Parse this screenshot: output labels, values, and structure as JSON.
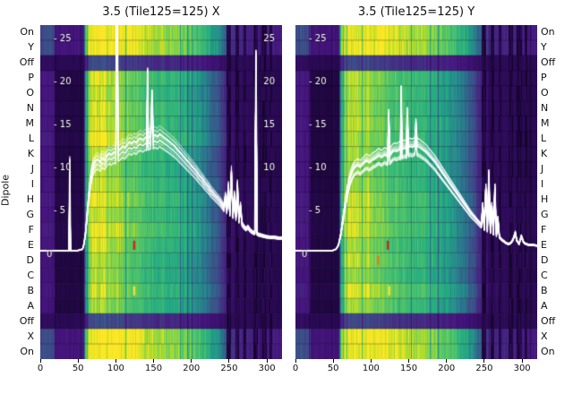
{
  "figure": {
    "background": "#ffffff",
    "ylabel": "Dipole"
  },
  "chart_data": [
    {
      "type": "heatmap",
      "title": "3.5 (Tile125=125) X",
      "x_ticks": [
        0,
        50,
        100,
        150,
        200,
        250,
        300
      ],
      "x_range": [
        0,
        320
      ],
      "rows": [
        "On",
        "Y",
        "Off",
        "P",
        "O",
        "N",
        "M",
        "L",
        "K",
        "J",
        "I",
        "H",
        "G",
        "F",
        "E",
        "D",
        "C",
        "B",
        "A",
        "Off",
        "X",
        "On"
      ],
      "amp_axis": {
        "min": 0,
        "max": 25,
        "ticks_left": [
          25,
          20,
          15,
          10,
          5
        ],
        "ticks_right": [
          25,
          20,
          15,
          10
        ],
        "zero_label": "0"
      },
      "colormap": [
        [
          0,
          "#05000d"
        ],
        [
          0.06,
          "#2a0a54"
        ],
        [
          0.13,
          "#46157e"
        ],
        [
          0.22,
          "#414487"
        ],
        [
          0.34,
          "#2a788e"
        ],
        [
          0.48,
          "#22a884"
        ],
        [
          0.62,
          "#44bf70"
        ],
        [
          0.76,
          "#7ad151"
        ],
        [
          0.88,
          "#bddf26"
        ],
        [
          1,
          "#fde725"
        ]
      ],
      "bandpass_profile": [
        [
          0,
          0.14
        ],
        [
          18,
          0.14
        ],
        [
          20,
          0.05
        ],
        [
          57,
          0.05
        ],
        [
          59,
          0.35
        ],
        [
          63,
          0.82
        ],
        [
          67,
          0.97
        ],
        [
          82,
          0.94
        ],
        [
          96,
          0.88
        ],
        [
          108,
          0.8
        ],
        [
          120,
          0.73
        ],
        [
          135,
          0.67
        ],
        [
          155,
          0.62
        ],
        [
          175,
          0.58
        ],
        [
          190,
          0.53
        ],
        [
          202,
          0.47
        ],
        [
          214,
          0.41
        ],
        [
          224,
          0.35
        ],
        [
          234,
          0.27
        ],
        [
          244,
          0.18
        ],
        [
          252,
          0.11
        ],
        [
          258,
          0.08
        ],
        [
          320,
          0.06
        ]
      ],
      "rfi_columns": [
        [
          246,
          252
        ],
        [
          258,
          263
        ],
        [
          268,
          272
        ],
        [
          281,
          287
        ],
        [
          292,
          299
        ],
        [
          303,
          306
        ]
      ],
      "marks": [
        {
          "x": 124,
          "row": 14,
          "color": "#cc2a12"
        },
        {
          "x": 124,
          "row": 17,
          "color": "#e8e337"
        }
      ],
      "seed": 101,
      "overlay": {
        "color": "#ffffff",
        "n_lines": 14,
        "series": [
          [
            0,
            0.3
          ],
          [
            34,
            0.3
          ],
          [
            38,
            0.3
          ],
          [
            39,
            10.5
          ],
          [
            40,
            0.3
          ],
          [
            50,
            0.35
          ],
          [
            56,
            0.5
          ],
          [
            58,
            1.2
          ],
          [
            60,
            2.5
          ],
          [
            62,
            4.5
          ],
          [
            64,
            6.5
          ],
          [
            66,
            8.2
          ],
          [
            68,
            9.4
          ],
          [
            70,
            10.2
          ],
          [
            73,
            10.7
          ],
          [
            76,
            10.9
          ],
          [
            79,
            10.6
          ],
          [
            82,
            11.1
          ],
          [
            85,
            10.8
          ],
          [
            88,
            11.3
          ],
          [
            91,
            11.6
          ],
          [
            94,
            11.4
          ],
          [
            97,
            11.7
          ],
          [
            100,
            11.6
          ],
          [
            101.5,
            40
          ],
          [
            103,
            11.9
          ],
          [
            106,
            12.1
          ],
          [
            109,
            12.4
          ],
          [
            112,
            12.2
          ],
          [
            115,
            12.6
          ],
          [
            118,
            12.9
          ],
          [
            121,
            12.7
          ],
          [
            124,
            13.0
          ],
          [
            127,
            12.8
          ],
          [
            130,
            13.2
          ],
          [
            133,
            13.3
          ],
          [
            136,
            13.1
          ],
          [
            139,
            13.4
          ],
          [
            141,
            13.3
          ],
          [
            142,
            21
          ],
          [
            143,
            13.4
          ],
          [
            146,
            13.5
          ],
          [
            148,
            18.5
          ],
          [
            149.5,
            13.5
          ],
          [
            152,
            13.7
          ],
          [
            155,
            13.5
          ],
          [
            158,
            13.8
          ],
          [
            161,
            13.6
          ],
          [
            164,
            13.4
          ],
          [
            167,
            13.2
          ],
          [
            170,
            13.0
          ],
          [
            174,
            12.7
          ],
          [
            178,
            12.4
          ],
          [
            182,
            12.0
          ],
          [
            186,
            11.6
          ],
          [
            190,
            11.2
          ],
          [
            194,
            10.8
          ],
          [
            198,
            10.4
          ],
          [
            202,
            10.0
          ],
          [
            206,
            9.6
          ],
          [
            210,
            9.1
          ],
          [
            214,
            8.7
          ],
          [
            218,
            8.2
          ],
          [
            222,
            7.8
          ],
          [
            226,
            7.3
          ],
          [
            230,
            6.9
          ],
          [
            234,
            6.5
          ],
          [
            238,
            6.1
          ],
          [
            241,
            5.7
          ],
          [
            243,
            5.4
          ],
          [
            245,
            6.6
          ],
          [
            247,
            5.1
          ],
          [
            249,
            7.8
          ],
          [
            251,
            4.8
          ],
          [
            253,
            9.5
          ],
          [
            255,
            4.5
          ],
          [
            257,
            6.8
          ],
          [
            259,
            4.2
          ],
          [
            261,
            8.0
          ],
          [
            263,
            3.9
          ],
          [
            265,
            5.6
          ],
          [
            267,
            3.5
          ],
          [
            269,
            3.2
          ],
          [
            272,
            2.9
          ],
          [
            275,
            3.1
          ],
          [
            278,
            2.7
          ],
          [
            281,
            2.5
          ],
          [
            284,
            2.4
          ],
          [
            285.5,
            23
          ],
          [
            287,
            2.3
          ],
          [
            290,
            2.2
          ],
          [
            294,
            2.1
          ],
          [
            298,
            2.0
          ],
          [
            304,
            1.9
          ],
          [
            310,
            1.9
          ],
          [
            316,
            1.8
          ],
          [
            320,
            1.8
          ]
        ]
      }
    },
    {
      "type": "heatmap",
      "title": "3.5 (Tile125=125) Y",
      "x_ticks": [
        0,
        50,
        100,
        150,
        200,
        250,
        300
      ],
      "x_range": [
        0,
        320
      ],
      "rows": [
        "On",
        "Y",
        "Off",
        "P",
        "O",
        "N",
        "M",
        "L",
        "K",
        "J",
        "I",
        "H",
        "G",
        "F",
        "E",
        "D",
        "C",
        "B",
        "A",
        "Off",
        "X",
        "On"
      ],
      "amp_axis": {
        "min": 0,
        "max": 25,
        "ticks_left": [
          25,
          20,
          15,
          10,
          5
        ],
        "ticks_right": [],
        "zero_label": "0"
      },
      "colormap": [
        [
          0,
          "#05000d"
        ],
        [
          0.06,
          "#2a0a54"
        ],
        [
          0.13,
          "#46157e"
        ],
        [
          0.22,
          "#414487"
        ],
        [
          0.34,
          "#2a788e"
        ],
        [
          0.48,
          "#22a884"
        ],
        [
          0.62,
          "#44bf70"
        ],
        [
          0.76,
          "#7ad151"
        ],
        [
          0.88,
          "#bddf26"
        ],
        [
          1,
          "#fde725"
        ]
      ],
      "bandpass_profile": [
        [
          0,
          0.14
        ],
        [
          18,
          0.14
        ],
        [
          20,
          0.05
        ],
        [
          57,
          0.05
        ],
        [
          59,
          0.35
        ],
        [
          63,
          0.82
        ],
        [
          67,
          0.97
        ],
        [
          82,
          0.94
        ],
        [
          96,
          0.88
        ],
        [
          108,
          0.8
        ],
        [
          120,
          0.73
        ],
        [
          135,
          0.67
        ],
        [
          155,
          0.62
        ],
        [
          175,
          0.58
        ],
        [
          190,
          0.53
        ],
        [
          202,
          0.47
        ],
        [
          214,
          0.41
        ],
        [
          224,
          0.35
        ],
        [
          234,
          0.27
        ],
        [
          244,
          0.18
        ],
        [
          252,
          0.11
        ],
        [
          258,
          0.08
        ],
        [
          320,
          0.06
        ]
      ],
      "rfi_columns": [
        [
          246,
          252
        ],
        [
          258,
          263
        ],
        [
          268,
          272
        ],
        [
          281,
          287
        ],
        [
          292,
          299
        ],
        [
          303,
          306
        ]
      ],
      "marks": [
        {
          "x": 122,
          "row": 14,
          "color": "#cc2a12"
        },
        {
          "x": 109,
          "row": 15,
          "color": "#e07b20"
        },
        {
          "x": 124,
          "row": 17,
          "color": "#e8e337"
        }
      ],
      "seed": 202,
      "overlay": {
        "color": "#ffffff",
        "n_lines": 14,
        "series": [
          [
            0,
            0.3
          ],
          [
            48,
            0.3
          ],
          [
            54,
            0.5
          ],
          [
            57,
            1.0
          ],
          [
            60,
            2.2
          ],
          [
            63,
            4.0
          ],
          [
            66,
            5.8
          ],
          [
            69,
            7.4
          ],
          [
            72,
            8.6
          ],
          [
            75,
            9.4
          ],
          [
            78,
            9.9
          ],
          [
            82,
            10.2
          ],
          [
            86,
            10.0
          ],
          [
            90,
            10.4
          ],
          [
            94,
            10.7
          ],
          [
            98,
            10.5
          ],
          [
            102,
            10.8
          ],
          [
            106,
            11.0
          ],
          [
            110,
            11.3
          ],
          [
            114,
            11.1
          ],
          [
            118,
            11.4
          ],
          [
            122,
            11.2
          ],
          [
            123.5,
            15.5
          ],
          [
            125,
            11.3
          ],
          [
            128,
            11.7
          ],
          [
            131,
            11.9
          ],
          [
            134,
            11.8
          ],
          [
            137,
            12.0
          ],
          [
            139,
            11.9
          ],
          [
            140,
            19
          ],
          [
            141,
            12.0
          ],
          [
            144,
            12.2
          ],
          [
            147,
            12.1
          ],
          [
            148,
            16.5
          ],
          [
            149.5,
            12.3
          ],
          [
            152,
            12.4
          ],
          [
            155,
            12.3
          ],
          [
            158,
            12.5
          ],
          [
            159.5,
            14.5
          ],
          [
            161,
            12.4
          ],
          [
            164,
            12.3
          ],
          [
            167,
            12.1
          ],
          [
            170,
            11.9
          ],
          [
            173,
            11.7
          ],
          [
            176,
            11.4
          ],
          [
            179,
            11.1
          ],
          [
            182,
            10.8
          ],
          [
            185,
            10.5
          ],
          [
            188,
            10.1
          ],
          [
            192,
            9.6
          ],
          [
            196,
            9.1
          ],
          [
            200,
            8.6
          ],
          [
            204,
            8.1
          ],
          [
            208,
            7.6
          ],
          [
            212,
            7.1
          ],
          [
            216,
            6.6
          ],
          [
            220,
            6.1
          ],
          [
            224,
            5.6
          ],
          [
            228,
            5.1
          ],
          [
            232,
            4.6
          ],
          [
            236,
            4.2
          ],
          [
            240,
            3.8
          ],
          [
            243,
            3.5
          ],
          [
            246,
            3.2
          ],
          [
            248,
            5.5
          ],
          [
            250,
            2.9
          ],
          [
            252,
            7.5
          ],
          [
            254,
            2.7
          ],
          [
            256,
            9.0
          ],
          [
            258,
            2.5
          ],
          [
            260,
            5.5
          ],
          [
            262,
            2.3
          ],
          [
            264,
            7.5
          ],
          [
            266,
            2.1
          ],
          [
            268,
            4.0
          ],
          [
            270,
            1.9
          ],
          [
            273,
            1.6
          ],
          [
            276,
            1.4
          ],
          [
            279,
            1.2
          ],
          [
            282,
            1.1
          ],
          [
            285,
            1.2
          ],
          [
            288,
            1.6
          ],
          [
            291,
            2.4
          ],
          [
            293,
            1.5
          ],
          [
            296,
            1.1
          ],
          [
            299,
            2.0
          ],
          [
            302,
            1.3
          ],
          [
            305,
            1.1
          ],
          [
            309,
            1.0
          ],
          [
            314,
            1.0
          ],
          [
            320,
            0.9
          ]
        ]
      }
    }
  ]
}
